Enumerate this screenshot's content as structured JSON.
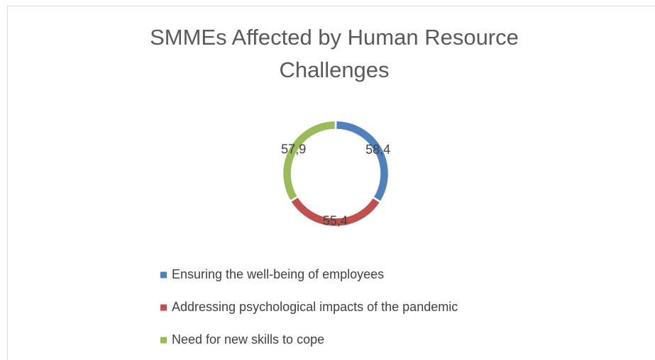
{
  "chart_data": {
    "type": "doughnut",
    "title": "SMMEs Affected by Human Resource Challenges",
    "categories": [
      "Ensuring the well-being of employees",
      "Addressing psychological impacts of the pandemic",
      "Need for new skills to cope"
    ],
    "values": [
      58.4,
      55.4,
      57.9
    ],
    "value_labels": [
      "58,4",
      "55,4",
      "57,9"
    ],
    "colors": [
      "#4f81bd",
      "#c0504d",
      "#9bbb59"
    ],
    "legend": "bottom"
  }
}
